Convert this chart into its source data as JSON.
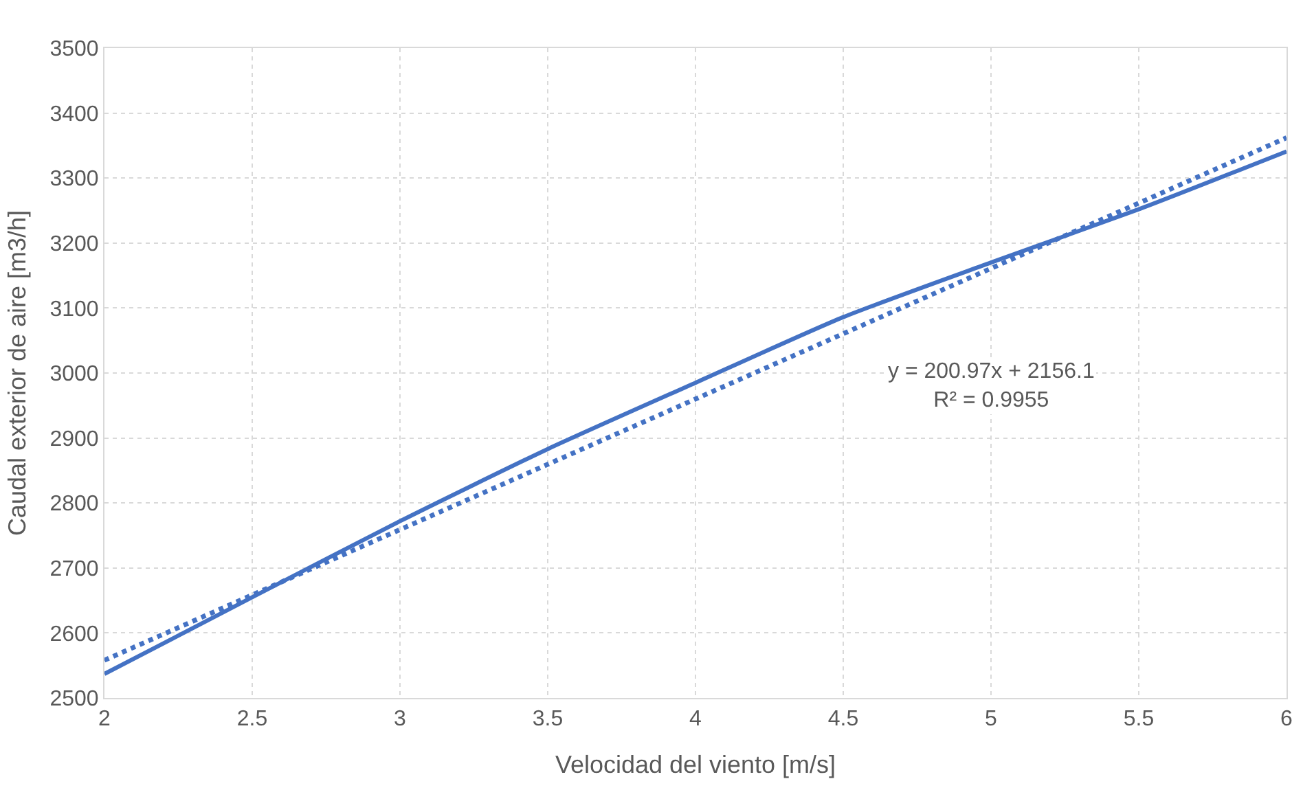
{
  "chart_data": {
    "type": "line",
    "xlabel": "Velocidad del viento [m/s]",
    "ylabel": "Caudal exterior de aire [m3/h]",
    "x": [
      2,
      2.5,
      3,
      3.5,
      4,
      4.5,
      5,
      5.5,
      6
    ],
    "series": [
      {
        "color": "#4472c4",
        "values": [
          2537,
          2655,
          2772,
          2883,
          2985,
          3086,
          3170,
          3252,
          3341
        ],
        "line_style": "solid"
      },
      {
        "type": "line",
        "color": "#4472c4",
        "x": [
          2,
          6
        ],
        "values": [
          2558,
          3362
        ],
        "line_style": "dotted"
      }
    ],
    "annotations": [
      "y = 200.97x + 2156.1\nR² = 0.9955"
    ],
    "xlim": [
      2,
      6
    ],
    "xticks": [
      2,
      2.5,
      3,
      3.5,
      4,
      4.5,
      5,
      5.5,
      6
    ],
    "ylim": [
      2500,
      3500
    ],
    "yticks": [
      2500,
      2600,
      2700,
      2800,
      2900,
      3000,
      3100,
      3200,
      3300,
      3400,
      3500
    ],
    "grid": true
  }
}
